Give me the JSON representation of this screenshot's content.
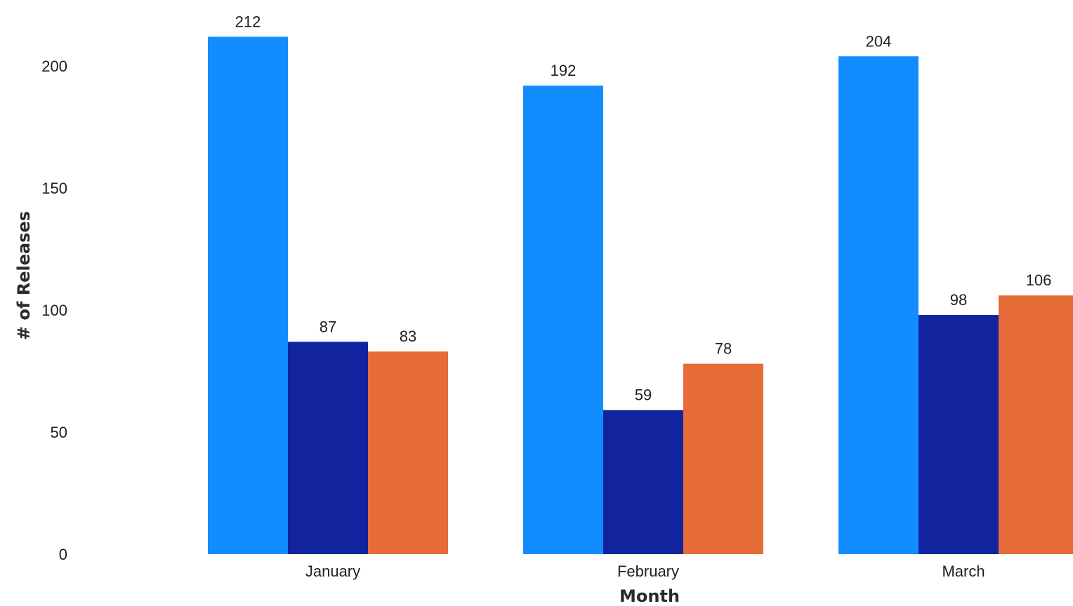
{
  "chart_data": {
    "type": "bar",
    "title": "",
    "xlabel": "Month",
    "ylabel": "# of Releases",
    "categories": [
      "January",
      "February",
      "March"
    ],
    "series": [
      {
        "values": [
          212,
          192,
          204
        ],
        "color": "#118DFF"
      },
      {
        "values": [
          87,
          59,
          98
        ],
        "color": "#12239E"
      },
      {
        "values": [
          83,
          78,
          106
        ],
        "color": "#E66C37"
      }
    ],
    "ylim": [
      0,
      215
    ],
    "yticks": [
      0,
      50,
      100,
      150,
      200
    ],
    "grid": false,
    "legend": "none",
    "data_labels": true
  }
}
